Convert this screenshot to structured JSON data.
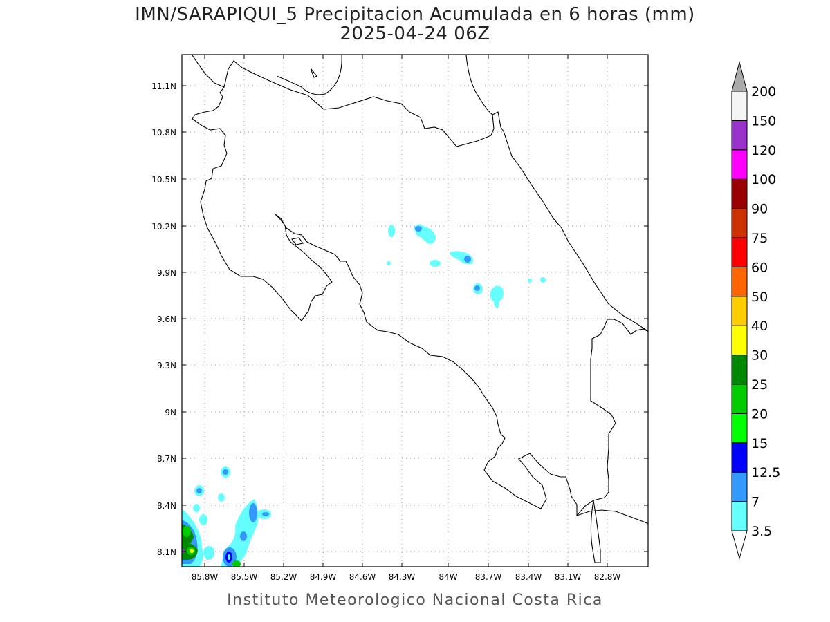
{
  "title_line1": "IMN/SARAPIQUI_5 Precipitacion Acumulada en 6 horas (mm)",
  "title_line2": "2025-04-24 06Z",
  "footer": "Instituto Meteorologico Nacional Costa Rica",
  "map": {
    "lon_range": [
      -86.0,
      -82.5
    ],
    "lat_range": [
      8.0,
      11.2
    ],
    "lon_ticks": [
      "85.8W",
      "85.5W",
      "85.2W",
      "84.9W",
      "84.6W",
      "84.3W",
      "84W",
      "83.7W",
      "83.4W",
      "83.1W",
      "82.8W"
    ],
    "lat_ticks": [
      "11.1N",
      "10.8N",
      "10.5N",
      "10.2N",
      "9.9N",
      "9.6N",
      "9.3N",
      "9N",
      "8.7N",
      "8.4N",
      "8.1N"
    ],
    "grid": "dotted"
  },
  "colorbar": {
    "labels": [
      "3.5",
      "7",
      "12.5",
      "15",
      "20",
      "25",
      "30",
      "40",
      "50",
      "60",
      "75",
      "90",
      "100",
      "120",
      "150",
      "200"
    ],
    "colors": [
      "#66ffff",
      "#3399ff",
      "#0000ff",
      "#00ff00",
      "#00cc00",
      "#008800",
      "#ffff00",
      "#ffcc00",
      "#ff6600",
      "#ff0000",
      "#cc3300",
      "#990000",
      "#ff00ff",
      "#9933cc",
      "#f5f5f5",
      "#aaaaaa"
    ]
  }
}
